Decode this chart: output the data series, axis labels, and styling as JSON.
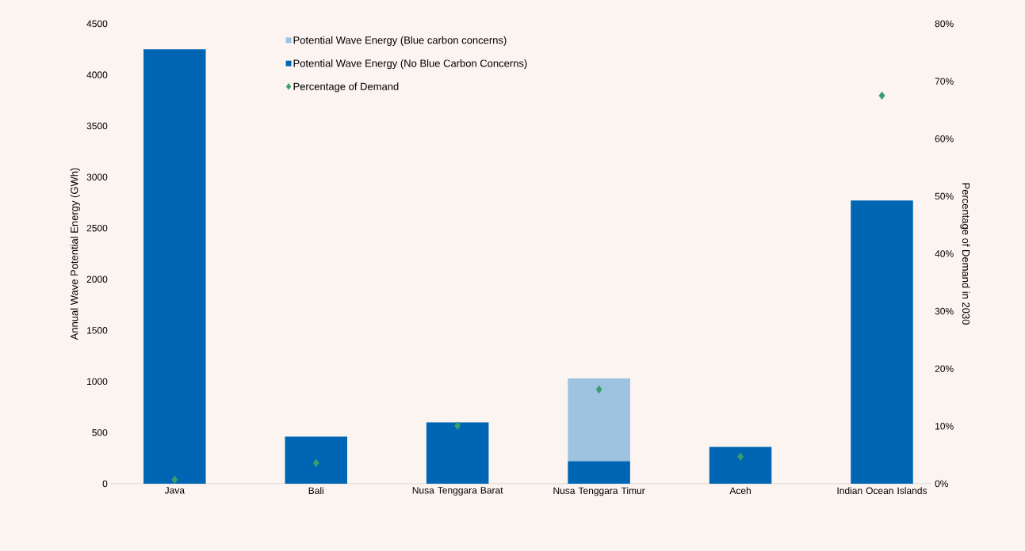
{
  "chart_data": {
    "type": "bar",
    "stacked": true,
    "categories": [
      "Java",
      "Bali",
      "Nusa Tenggara Barat",
      "Nusa Tenggara Timur",
      "Aceh",
      "Indian Ocean Islands"
    ],
    "ylabel": "Annual Wave Potential Energy (GWh)",
    "y2label": "Percentage of Demand in 2030",
    "ylim": [
      0,
      4500
    ],
    "yticks": [
      0,
      500,
      1000,
      1500,
      2000,
      2500,
      3000,
      3500,
      4000,
      4500
    ],
    "y2lim": [
      0,
      80
    ],
    "y2ticks": [
      {
        "value": 0,
        "label": "0%"
      },
      {
        "value": 10,
        "label": "10%"
      },
      {
        "value": 20,
        "label": "20%"
      },
      {
        "value": 30,
        "label": "30%"
      },
      {
        "value": 40,
        "label": "40%"
      },
      {
        "value": 50,
        "label": "50%"
      },
      {
        "value": 60,
        "label": "60%"
      },
      {
        "value": 70,
        "label": "70%"
      },
      {
        "value": 80,
        "label": "80%"
      }
    ],
    "legend": "top",
    "grid": false,
    "series": [
      {
        "name": "Potential Wave Energy (No Blue Carbon Concerns)",
        "type": "bar",
        "color": "#0066b3",
        "values": [
          4250,
          460,
          600,
          220,
          360,
          2770
        ]
      },
      {
        "name": "Potential Wave Energy (Blue carbon concerns)",
        "type": "bar",
        "color": "#9dc3e1",
        "values": [
          0,
          0,
          0,
          810,
          0,
          0
        ]
      },
      {
        "name": "Percentage of Demand",
        "type": "scatter",
        "axis": "y2",
        "marker": "diamond",
        "color": "#3a9e6b",
        "values": [
          0.7,
          3.6,
          10.1,
          16.4,
          4.7,
          67.5
        ]
      }
    ]
  }
}
